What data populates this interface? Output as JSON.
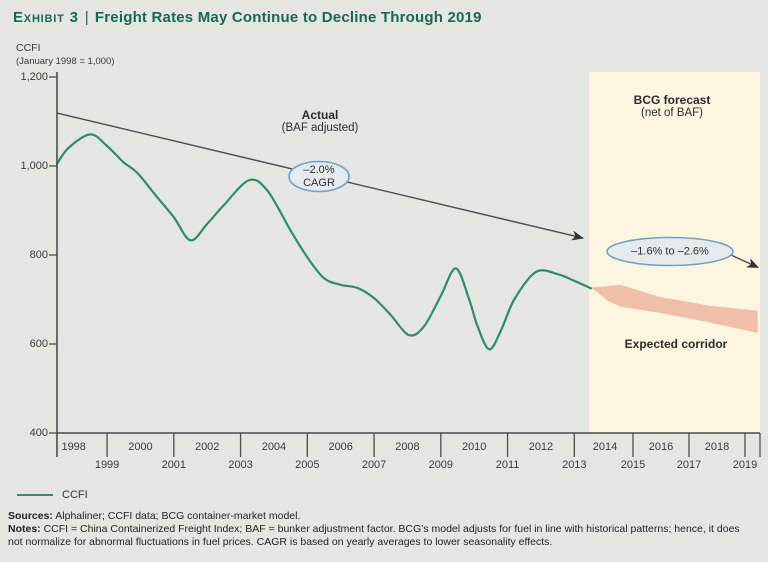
{
  "exhibit": {
    "label": "Exhibit 3",
    "separator": "|",
    "title": "Freight Rates May Continue to Decline Through 2019"
  },
  "y_axis_title": {
    "line1": "CCFI",
    "line2": "(January 1998 = 1,000)"
  },
  "annotations": {
    "actual_title": "Actual",
    "actual_sub": "(BAF adjusted)",
    "actual_cagr_line1": "–2.0%",
    "actual_cagr_line2": "CAGR",
    "forecast_title": "BCG forecast",
    "forecast_sub": "(net of BAF)",
    "forecast_cagr": "–1.6% to –2.6%",
    "corridor_label": "Expected corridor"
  },
  "legend": {
    "items": [
      {
        "label": "CCFI",
        "color": "#2e8c6b"
      }
    ]
  },
  "footer": {
    "sources_label": "Sources:",
    "sources_text": " Alphaliner; CCFI data; BCG container-market model.",
    "notes_label": "Notes:",
    "notes_text": " CCFI = China Containerized Freight Index; BAF = bunker adjustment factor. BCG’s model adjusts for fuel in line with historical patterns; hence, it does not normalize for abnormal fluctuations in fuel prices. CAGR is based on yearly averages to lower seasonality effects."
  },
  "colors": {
    "title_green": "#17694e",
    "ccfi_line": "#2e8c6b",
    "forecast_band": "#fcf5df",
    "corridor": "#f1bea7",
    "axis": "#4b4b4b",
    "bubble_stroke": "#70a2c5",
    "bubble_fill": "#e7eaec",
    "background": "#e5e5e4"
  },
  "chart_data": {
    "type": "line",
    "title": "CCFI (January 1998 = 1,000)",
    "ylabel": "CCFI",
    "ylim": [
      400,
      1200
    ],
    "y_tick_values": [
      1200,
      1000,
      800,
      600,
      400
    ],
    "y_tick_labels": [
      "1,200",
      "1,000",
      "800",
      "600",
      "400"
    ],
    "x_range": [
      1998,
      2019
    ],
    "x_ticks_row1": [
      "1998",
      "2000",
      "2002",
      "2004",
      "2006",
      "2008",
      "2010",
      "2012",
      "2014",
      "2016",
      "2018"
    ],
    "x_ticks_row2": [
      "1999",
      "2001",
      "2003",
      "2005",
      "2007",
      "2009",
      "2011",
      "2013",
      "2015",
      "2017",
      "2019"
    ],
    "grid": false,
    "legend_position": "bottom-left",
    "series": [
      {
        "name": "CCFI",
        "color": "#2e8c6b",
        "points": [
          [
            1998.0,
            1005
          ],
          [
            1998.35,
            1041
          ],
          [
            1999.0,
            1071
          ],
          [
            1999.5,
            1045
          ],
          [
            2000.0,
            1008
          ],
          [
            2000.4,
            985
          ],
          [
            2001.0,
            930
          ],
          [
            2001.5,
            885
          ],
          [
            2002.0,
            833
          ],
          [
            2002.5,
            870
          ],
          [
            2003.0,
            912
          ],
          [
            2003.75,
            968
          ],
          [
            2004.3,
            945
          ],
          [
            2005.0,
            855
          ],
          [
            2005.5,
            795
          ],
          [
            2006.0,
            748
          ],
          [
            2006.5,
            733
          ],
          [
            2007.0,
            726
          ],
          [
            2007.5,
            703
          ],
          [
            2008.0,
            665
          ],
          [
            2008.55,
            620
          ],
          [
            2009.0,
            640
          ],
          [
            2009.5,
            708
          ],
          [
            2009.95,
            770
          ],
          [
            2010.35,
            700
          ],
          [
            2010.6,
            640
          ],
          [
            2010.95,
            588
          ],
          [
            2011.3,
            630
          ],
          [
            2011.7,
            700
          ],
          [
            2012.35,
            762
          ],
          [
            2013.0,
            757
          ],
          [
            2013.5,
            742
          ],
          [
            2014.0,
            725
          ]
        ]
      }
    ],
    "forecast_region": {
      "start_year": 2014,
      "end_year": 2020,
      "label": "BCG forecast (net of BAF)"
    },
    "forecast_corridor": {
      "label": "Expected corridor",
      "upper": [
        [
          2014.0,
          727
        ],
        [
          2015.05,
          733
        ],
        [
          2016.45,
          706
        ],
        [
          2018.25,
          686
        ],
        [
          2019.95,
          675
        ]
      ],
      "lower": [
        [
          2014.0,
          727
        ],
        [
          2014.6,
          697
        ],
        [
          2015.05,
          684
        ],
        [
          2016.45,
          670
        ],
        [
          2018.25,
          648
        ],
        [
          2019.95,
          625
        ]
      ]
    },
    "trend": {
      "actual_cagr_pct": -2.0,
      "forecast_cagr_range_pct": [
        -1.6,
        -2.6
      ],
      "trend_line": [
        [
          1998.0,
          1119
        ],
        [
          2013.76,
          838
        ]
      ],
      "forecast_arrow": [
        [
          2019.0,
          800
        ],
        [
          2019.97,
          772
        ]
      ]
    }
  }
}
